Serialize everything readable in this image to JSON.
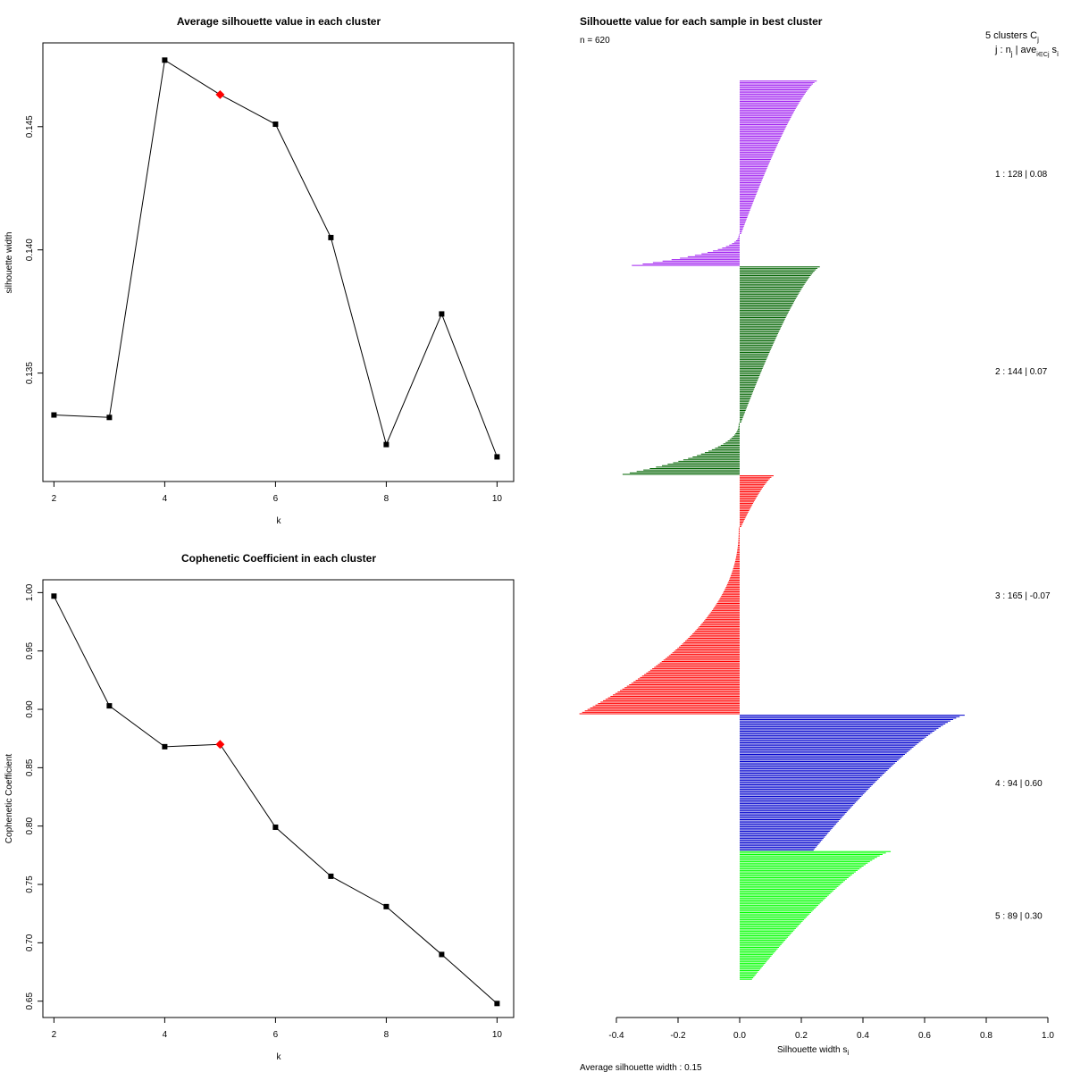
{
  "chart_data": [
    {
      "type": "line",
      "title": "Average silhouette value in each cluster",
      "xlabel": "k",
      "ylabel": "silhouette width",
      "x": [
        2,
        3,
        4,
        5,
        6,
        7,
        8,
        9,
        10
      ],
      "y": [
        0.1333,
        0.1332,
        0.1477,
        0.1463,
        0.1451,
        0.1405,
        0.1321,
        0.1374,
        0.1316
      ],
      "highlight_x": 5,
      "xlim": [
        1.8,
        10.3
      ],
      "ylim": [
        0.1306,
        0.1484
      ],
      "xticks": [
        2,
        4,
        6,
        8,
        10
      ],
      "yticks": [
        0.135,
        0.14,
        0.145
      ],
      "ytick_labels": [
        "0.135",
        "0.140",
        "0.145"
      ],
      "marker_color": "#000000",
      "highlight_color": "#ff0000"
    },
    {
      "type": "line",
      "title": "Cophenetic Coefficient in each cluster",
      "xlabel": "k",
      "ylabel": "Cophenetic Coefficient",
      "x": [
        2,
        3,
        4,
        5,
        6,
        7,
        8,
        9,
        10
      ],
      "y": [
        0.997,
        0.903,
        0.868,
        0.87,
        0.799,
        0.757,
        0.731,
        0.69,
        0.648
      ],
      "highlight_x": 5,
      "xlim": [
        1.8,
        10.3
      ],
      "ylim": [
        0.636,
        1.011
      ],
      "xticks": [
        2,
        4,
        6,
        8,
        10
      ],
      "yticks": [
        0.65,
        0.7,
        0.75,
        0.8,
        0.85,
        0.9,
        0.95,
        1.0
      ],
      "ytick_labels": [
        "0.65",
        "0.70",
        "0.75",
        "0.80",
        "0.85",
        "0.90",
        "0.95",
        "1.00"
      ],
      "marker_color": "#000000",
      "highlight_color": "#ff0000"
    },
    {
      "type": "bar",
      "orientation": "horizontal",
      "title": "Silhouette value for each sample in best cluster",
      "n_label": "n = 620",
      "xlabel": "Silhouette width s",
      "xlabel_sub": "i",
      "xlim": [
        -0.4,
        1.0
      ],
      "xticks": [
        -0.4,
        -0.2,
        0.0,
        0.2,
        0.4,
        0.6,
        0.8,
        1.0
      ],
      "xtick_labels": [
        "-0.4",
        "-0.2",
        "0.0",
        "0.2",
        "0.4",
        "0.6",
        "0.8",
        "1.0"
      ],
      "header_line1": "5  clusters  C",
      "header_line1_sub": "j",
      "header_line2": "j :  n",
      "header_line2_sub": "j",
      "header_line2_rest": " | ave",
      "header_line2_sub2": "i∈Cj",
      "header_line2_tail": " s",
      "header_line2_tail_sub": "i",
      "average_text": "Average silhouette width :  0.15",
      "clusters": [
        {
          "label": "1 :   128  |  0.08",
          "n": 128,
          "color": "#a020f0",
          "max": 0.25,
          "min": -0.35,
          "pos_frac": 0.83,
          "ave": 0.08
        },
        {
          "label": "2 :   144  |  0.07",
          "n": 144,
          "color": "#006400",
          "max": 0.26,
          "min": -0.38,
          "pos_frac": 0.75,
          "ave": 0.07
        },
        {
          "label": "3 :   165  |  -0.07",
          "n": 165,
          "color": "#ff0000",
          "max": 0.11,
          "min": -0.52,
          "pos_frac": 0.22,
          "ave": -0.07
        },
        {
          "label": "4 :   94  |  0.60",
          "n": 94,
          "color": "#0000cd",
          "max": 0.73,
          "min": 0.24,
          "pos_frac": 1.0,
          "ave": 0.6
        },
        {
          "label": "5 :   89  |  0.30",
          "n": 89,
          "color": "#00ff00",
          "max": 0.49,
          "min": 0.04,
          "pos_frac": 1.0,
          "ave": 0.3
        }
      ]
    }
  ]
}
